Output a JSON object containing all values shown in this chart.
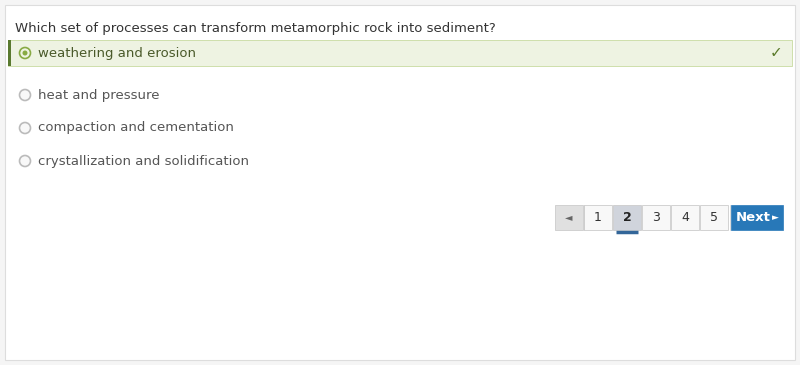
{
  "question": "Which set of processes can transform metamorphic rock into sediment?",
  "options": [
    "weathering and erosion",
    "heat and pressure",
    "compaction and cementation",
    "crystallization and solidification"
  ],
  "correct_index": 0,
  "selected_index": 0,
  "correct_bg": "#eef3e2",
  "correct_border_left": "#5a7a30",
  "correct_text_color": "#4a5a2a",
  "check_color": "#5a7a2a",
  "option_text_color": "#555555",
  "question_color": "#333333",
  "bg_color": "#ffffff",
  "outer_bg": "#f5f5f5",
  "nav_back_bg": "#e0e0e0",
  "nav_page_bg": "#f8f8f8",
  "nav_active_bg": "#d0d4dc",
  "nav_next_bg": "#2878b8",
  "nav_text_color": "#333333",
  "nav_next_text_color": "#ffffff",
  "page_numbers": [
    "1",
    "2",
    "3",
    "4",
    "5"
  ],
  "current_page": 1,
  "font_size_question": 9.5,
  "font_size_option": 9.5,
  "font_size_nav": 9
}
